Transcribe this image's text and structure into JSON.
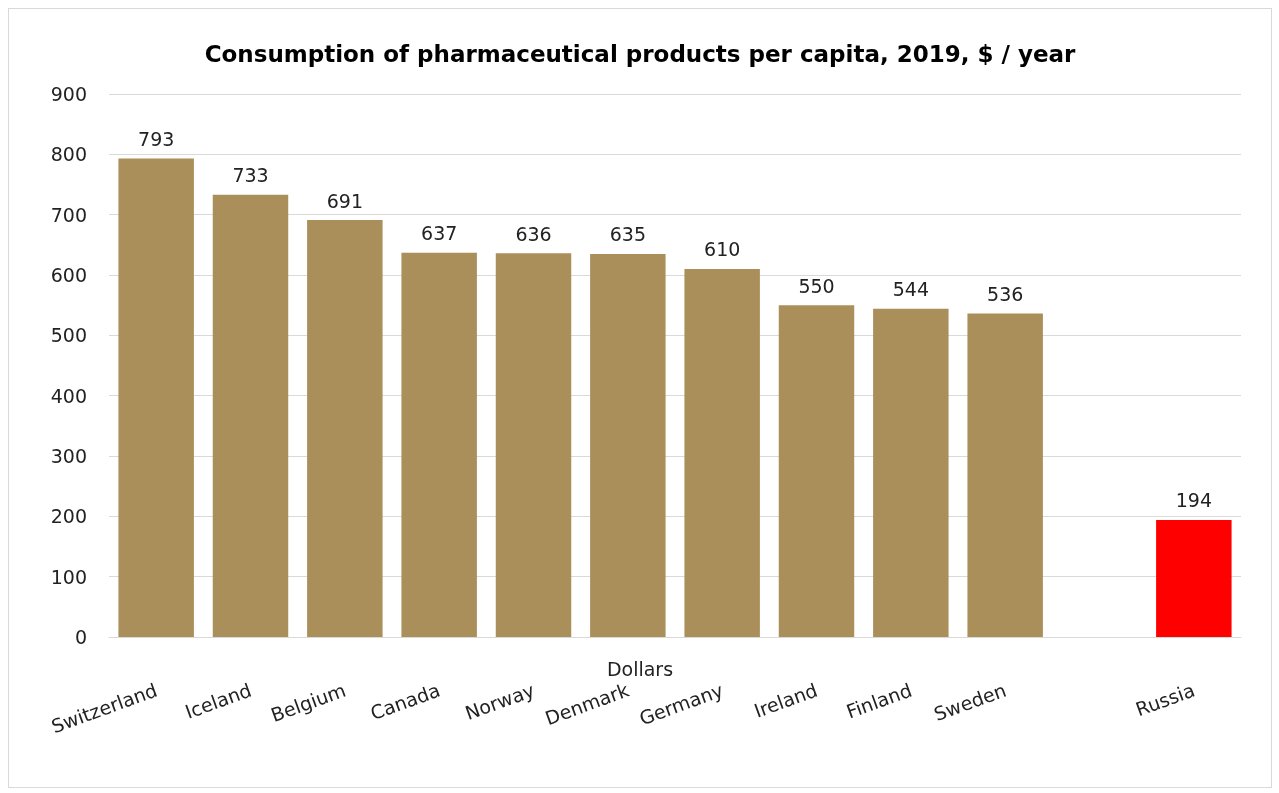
{
  "chart_data": {
    "type": "bar",
    "title": "Consumption of pharmaceutical products per capita, 2019, $ / year",
    "xlabel": "Dollars",
    "categories": [
      "Switzerland",
      "Iceland",
      "Belgium",
      "Canada",
      "Norway",
      "Denmark",
      "Germany",
      "Ireland",
      "Finland",
      "Sweden",
      null,
      "Russia"
    ],
    "values": [
      793,
      733,
      691,
      637,
      636,
      635,
      610,
      550,
      544,
      536,
      null,
      194
    ],
    "colors": [
      "#ab8f5a",
      "#ab8f5a",
      "#ab8f5a",
      "#ab8f5a",
      "#ab8f5a",
      "#ab8f5a",
      "#ab8f5a",
      "#ab8f5a",
      "#ab8f5a",
      "#ab8f5a",
      "#ab8f5a",
      "#ff0000"
    ],
    "ylim": [
      0,
      900
    ],
    "yticks": [
      0,
      100,
      200,
      300,
      400,
      500,
      600,
      700,
      800,
      900
    ],
    "grid": "y",
    "data_labels": true
  }
}
